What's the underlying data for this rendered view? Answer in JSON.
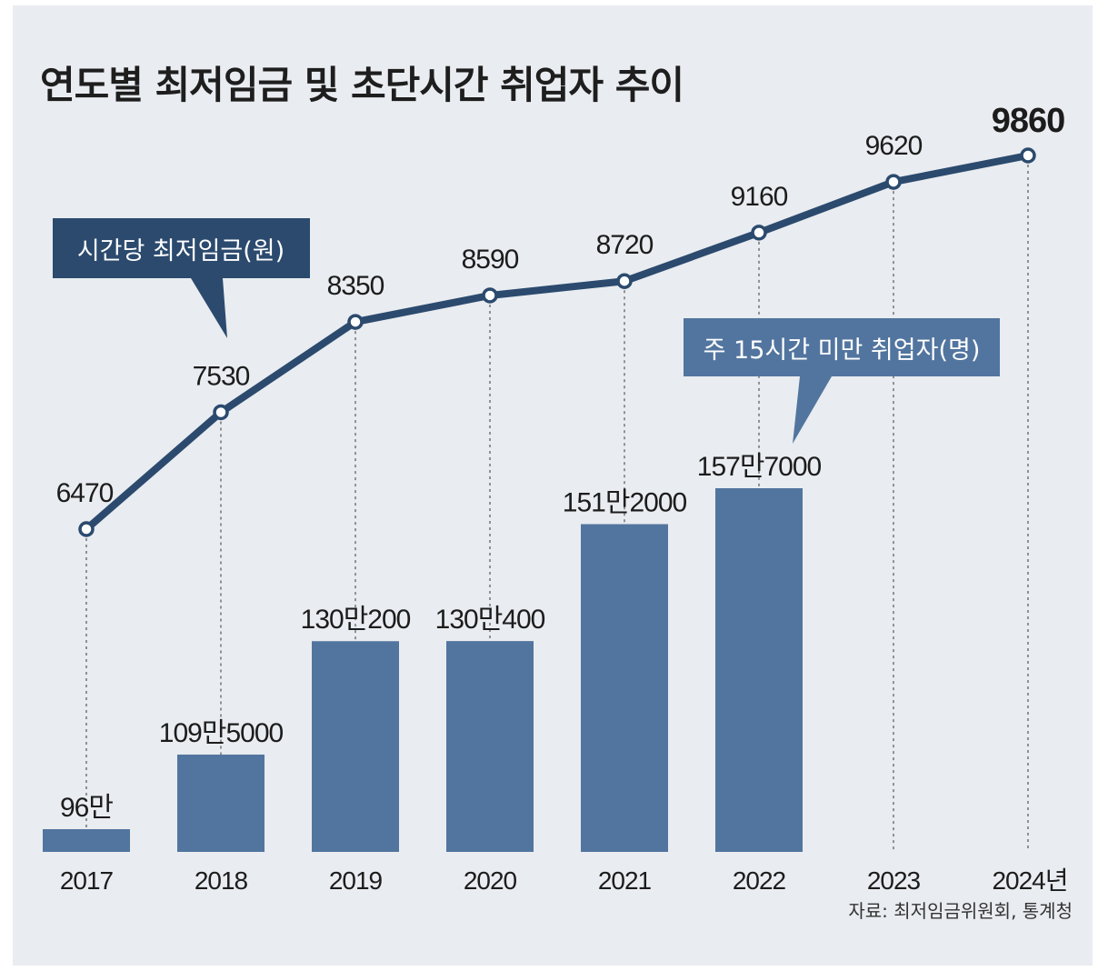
{
  "title": "연도별 최저임금 및 초단시간 취업자 추이",
  "source": "자료: 최저임금위원회, 통계청",
  "colors": {
    "line": "#2b4a6e",
    "bar": "#52759f",
    "line_callout": "#2b4a6e",
    "bar_callout": "#52759f",
    "background": "#e9ecf0"
  },
  "chart_data": {
    "type": "bar+line",
    "categories": [
      "2017",
      "2018",
      "2019",
      "2020",
      "2021",
      "2022",
      "2023",
      "2024년"
    ],
    "series": [
      {
        "name": "시간당 최저임금(원)",
        "type": "line",
        "values": [
          6470,
          7530,
          8350,
          8590,
          8720,
          9160,
          9620,
          9860
        ],
        "labels": [
          "6470",
          "7530",
          "8350",
          "8590",
          "8720",
          "9160",
          "9620",
          "9860"
        ]
      },
      {
        "name": "주 15시간 미만 취업자(명)",
        "type": "bar",
        "values": [
          960000,
          1095000,
          1300200,
          1300400,
          1512000,
          1577000,
          null,
          null
        ],
        "labels": [
          "96만",
          "109만5000",
          "130만200",
          "130만400",
          "151만2000",
          "157만7000",
          "",
          ""
        ]
      }
    ],
    "title": "연도별 최저임금 및 초단시간 취업자 추이",
    "xlabel": "",
    "ylabel": "",
    "grid": false
  }
}
